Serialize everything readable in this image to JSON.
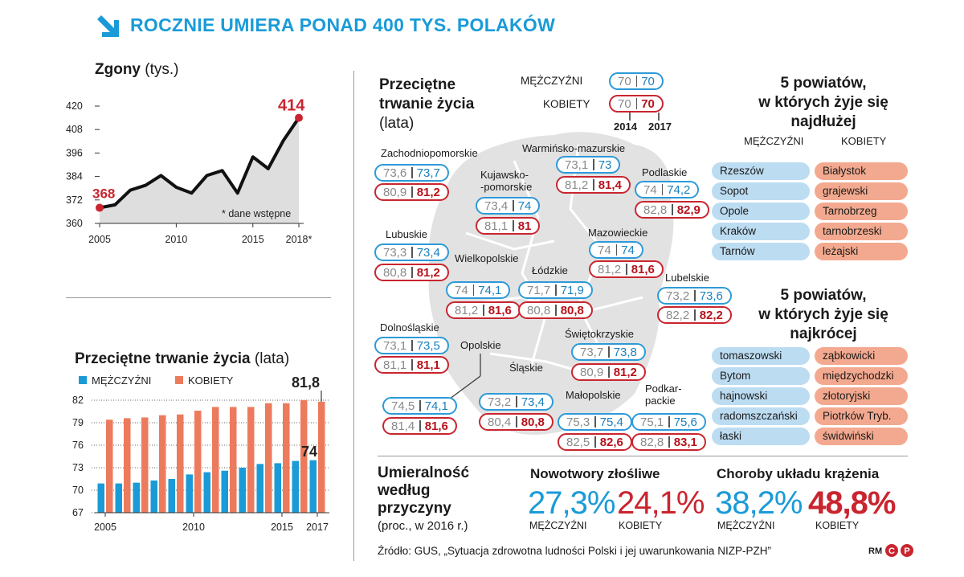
{
  "title": "ROCZNIE UMIERA PONAD 400 TYS. POLAKÓW",
  "deaths": {
    "heading": "Zgony",
    "unit": "(tys.)",
    "note": "* dane wstępne",
    "highlight_first": "368",
    "highlight_last": "414",
    "y_ticks": [
      "420",
      "408",
      "396",
      "384",
      "372",
      "360"
    ],
    "x_ticks": [
      "2005",
      "2010",
      "2015",
      "2018*"
    ]
  },
  "life_chart": {
    "heading": "Przeciętne trwanie życia",
    "unit": "(lata)",
    "legend_m": "MĘŻCZYŹNI",
    "legend_f": "KOBIETY",
    "label_f_last": "81,8",
    "label_m_last": "74",
    "y_ticks": [
      "82",
      "79",
      "76",
      "73",
      "70",
      "67"
    ],
    "x_ticks": [
      "2005",
      "2010",
      "2015",
      "2017"
    ]
  },
  "map": {
    "heading_line1": "Przeciętne",
    "heading_line2": "trwanie życia",
    "heading_unit": "(lata)",
    "legend_m_label": "MĘŻCZYŹNI",
    "legend_f_label": "KOBIETY",
    "legend_m_a": "70",
    "legend_m_b": "70",
    "legend_f_a": "70",
    "legend_f_b": "70",
    "legend_year_a": "2014",
    "legend_year_b": "2017",
    "regions": [
      {
        "name": "Zachodniopomorskie",
        "m": [
          "73,6",
          "73,7"
        ],
        "f": [
          "80,9",
          "81,2"
        ]
      },
      {
        "name": "Warmińsko-mazurskie",
        "m": [
          "73,1",
          "73"
        ],
        "f": [
          "81,2",
          "81,4"
        ]
      },
      {
        "name": "Kujawsko-",
        "name2": "-pomorskie",
        "m": [
          "73,4",
          "74"
        ],
        "f": [
          "81,1",
          "81"
        ]
      },
      {
        "name": "Podlaskie",
        "m": [
          "74",
          "74,2"
        ],
        "f": [
          "82,8",
          "82,9"
        ]
      },
      {
        "name": "Lubuskie",
        "m": [
          "73,3",
          "73,4"
        ],
        "f": [
          "80,8",
          "81,2"
        ]
      },
      {
        "name": "Mazowieckie",
        "m": [
          "74",
          "74"
        ],
        "f": [
          "81,2",
          "81,6"
        ]
      },
      {
        "name": "Wielkopolskie",
        "m": [
          "74",
          "74,1"
        ],
        "f": [
          "81,2",
          "81,6"
        ]
      },
      {
        "name": "Łódzkie",
        "m": [
          "71,7",
          "71,9"
        ],
        "f": [
          "80,8",
          "80,8"
        ]
      },
      {
        "name": "Lubelskie",
        "m": [
          "73,2",
          "73,6"
        ],
        "f": [
          "82,2",
          "82,2"
        ]
      },
      {
        "name": "Dolnośląskie",
        "m": [
          "73,1",
          "73,5"
        ],
        "f": [
          "81,1",
          "81,1"
        ]
      },
      {
        "name": "Opolskie",
        "m": [
          "74,5",
          "74,1"
        ],
        "f": [
          "81,4",
          "81,6"
        ]
      },
      {
        "name": "Świętokrzyskie",
        "m": [
          "73,7",
          "73,8"
        ],
        "f": [
          "80,9",
          "81,2"
        ]
      },
      {
        "name": "Śląskie",
        "m": [
          "73,2",
          "73,4"
        ],
        "f": [
          "80,4",
          "80,8"
        ]
      },
      {
        "name": "Małopolskie",
        "m": [
          "75,3",
          "75,4"
        ],
        "f": [
          "82,5",
          "82,6"
        ]
      },
      {
        "name": "Podkar-",
        "name2": "packie",
        "m": [
          "75,1",
          "75,6"
        ],
        "f": [
          "82,8",
          "83,1"
        ]
      }
    ]
  },
  "longest": {
    "line1": "5 powiatów,",
    "line2": "w których żyje się",
    "line3": "najdłużej",
    "col_m": "MĘŻCZYŹNI",
    "col_f": "KOBIETY",
    "m": [
      "Rzeszów",
      "Sopot",
      "Opole",
      "Kraków",
      "Tarnów"
    ],
    "f": [
      "Białystok",
      "grajewski",
      "Tarnobrzeg",
      "tarnobrzeski",
      "leżajski"
    ]
  },
  "shortest": {
    "line1": "5 powiatów,",
    "line2": "w których żyje się",
    "line3": "najkrócej",
    "m": [
      "tomaszowski",
      "Bytom",
      "hajnowski",
      "radomszczański",
      "łaski"
    ],
    "f": [
      "ząbkowicki",
      "międzychodzki",
      "złotoryjski",
      "Piotrków Tryb.",
      "świdwiński"
    ]
  },
  "mortality": {
    "line1": "Umieralność",
    "line2": "według",
    "line3": "przyczyny",
    "unit": "(proc., w 2016 r.)",
    "cancer_title": "Nowotwory złośliwe",
    "cancer_m": "27,3%",
    "cancer_f": "24,1%",
    "circ_title": "Choroby układu krążenia",
    "circ_m": "38,2%",
    "circ_f": "48,8%",
    "label_m": "MĘŻCZYŹNI",
    "label_f": "KOBIETY"
  },
  "source": "Źródło: GUS, „Sytuacja zdrowotna ludności Polski i jej uwarunkowania NIZP-PZH”",
  "credit": "RM",
  "colors": {
    "blue": "#1a9bd7",
    "red": "#c9252f",
    "bar_m": "#1a9bd7",
    "bar_f": "#ec7b5d",
    "tag_m": "#bcdcf2",
    "tag_f": "#f3a98f"
  },
  "chart_data": [
    {
      "type": "line",
      "title": "Zgony",
      "ylabel": "(tys.)",
      "x": [
        2005,
        2006,
        2007,
        2008,
        2009,
        2010,
        2011,
        2012,
        2013,
        2014,
        2015,
        2016,
        2017,
        2018
      ],
      "values": [
        368,
        369.5,
        377,
        379.5,
        384.5,
        378.5,
        375.5,
        384.5,
        387,
        375.5,
        394,
        388,
        402.5,
        414
      ],
      "ylim": [
        360,
        420
      ],
      "grid": false
    },
    {
      "type": "bar",
      "title": "Przeciętne trwanie życia",
      "ylabel": "(lata)",
      "categories": [
        "2005",
        "2006",
        "2007",
        "2008",
        "2009",
        "2010",
        "2011",
        "2012",
        "2013",
        "2014",
        "2015",
        "2016",
        "2017"
      ],
      "series": [
        {
          "name": "MĘŻCZYŹNI",
          "values": [
            70.9,
            70.9,
            71.0,
            71.3,
            71.5,
            72.1,
            72.4,
            72.6,
            73.0,
            73.5,
            73.6,
            73.9,
            74.0
          ]
        },
        {
          "name": "KOBIETY",
          "values": [
            79.4,
            79.6,
            79.7,
            80.0,
            80.1,
            80.6,
            81.1,
            81.1,
            81.1,
            81.6,
            81.6,
            82.0,
            81.8
          ]
        }
      ],
      "ylim": [
        67,
        82
      ],
      "legend": "top-left"
    }
  ]
}
